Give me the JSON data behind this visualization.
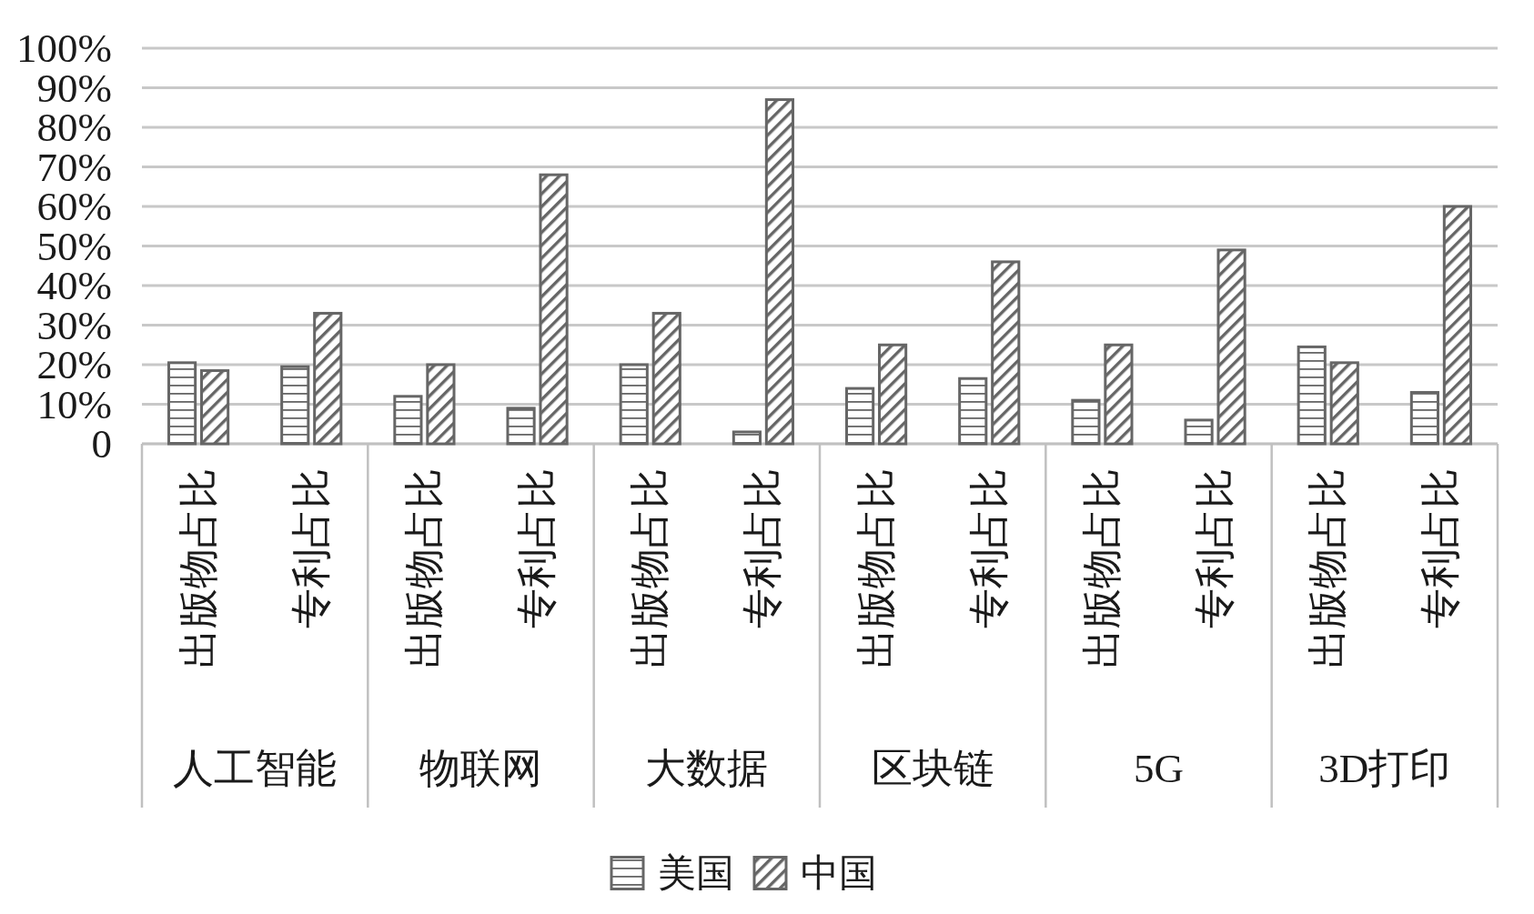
{
  "chart_data": {
    "type": "bar",
    "categories": [
      "出版物占比",
      "专利占比",
      "出版物占比",
      "专利占比",
      "出版物占比",
      "专利占比",
      "出版物占比",
      "专利占比",
      "出版物占比",
      "专利占比",
      "出版物占比",
      "专利占比"
    ],
    "series": [
      {
        "name": "美国",
        "color": "#666666",
        "values": [
          20.5,
          19.5,
          12,
          9,
          20,
          3,
          14,
          16.5,
          11,
          6,
          24.5,
          13
        ]
      },
      {
        "name": "中国",
        "color": "#666666",
        "values": [
          18.5,
          33,
          20,
          68,
          33,
          87,
          25,
          46,
          25,
          49,
          20.5,
          60
        ]
      }
    ],
    "ylim": [
      0,
      100
    ],
    "yticks": [
      0,
      {
        "value": 10,
        "label": "10%"
      },
      {
        "value": 20,
        "label": "20%"
      },
      {
        "value": 30,
        "label": "30%"
      },
      {
        "value": 40,
        "label": "40%"
      },
      {
        "value": 50,
        "label": "50%"
      },
      {
        "value": 60,
        "label": "60%"
      },
      {
        "value": 70,
        "label": "70%"
      },
      {
        "value": 80,
        "label": "80%"
      },
      {
        "value": 90,
        "label": "90%"
      },
      {
        "value": 100,
        "label": "100%"
      }
    ],
    "grid": "y",
    "legend": "bottom",
    "annotations": [
      "人工智能",
      "物联网",
      "大数据",
      "区块链",
      "5G",
      "3D打印"
    ]
  }
}
